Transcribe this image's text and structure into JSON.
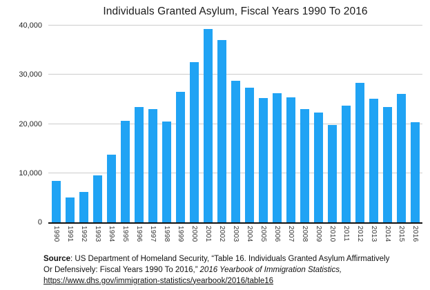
{
  "title": "Individuals Granted Asylum, Fiscal Years 1990 To 2016",
  "chart_data": {
    "type": "bar",
    "title": "Individuals Granted Asylum, Fiscal Years 1990 To 2016",
    "categories": [
      "1990",
      "1991",
      "1992",
      "1993",
      "1994",
      "1995",
      "1996",
      "1997",
      "1998",
      "1999",
      "2000",
      "2001",
      "2002",
      "2003",
      "2004",
      "2005",
      "2006",
      "2007",
      "2008",
      "2009",
      "2010",
      "2011",
      "2012",
      "2013",
      "2014",
      "2015",
      "2016"
    ],
    "values": [
      8400,
      5000,
      6200,
      9500,
      13700,
      20700,
      23500,
      23000,
      20500,
      26500,
      32500,
      39300,
      37000,
      28800,
      27400,
      25300,
      26300,
      25400,
      23000,
      22300,
      19800,
      23700,
      28300,
      25100,
      23400,
      26100,
      20400
    ],
    "xlabel": "",
    "ylabel": "",
    "ylim": [
      0,
      40000
    ],
    "yticks": [
      0,
      10000,
      20000,
      30000,
      40000
    ],
    "ytick_labels": [
      "0",
      "10,000",
      "20,000",
      "30,000",
      "40,000"
    ],
    "bar_color": "#20a3f4",
    "gridline_color": "#cccccc",
    "baseline_color": "#111111",
    "grid": "on",
    "legend": "none"
  },
  "source": {
    "label": "Source",
    "line1_rest": ": US Department of Homeland Security, “Table 16. Individuals Granted Asylum Affirmatively",
    "line2_plain": "Or Defensively: Fiscal Years 1990 To 2016,”",
    "line2_italic": "2016 Yearbook of Immigration Statistics,",
    "line3_link": "https://www.dhs.gov/immigration-statistics/yearbook/2016/table16"
  }
}
